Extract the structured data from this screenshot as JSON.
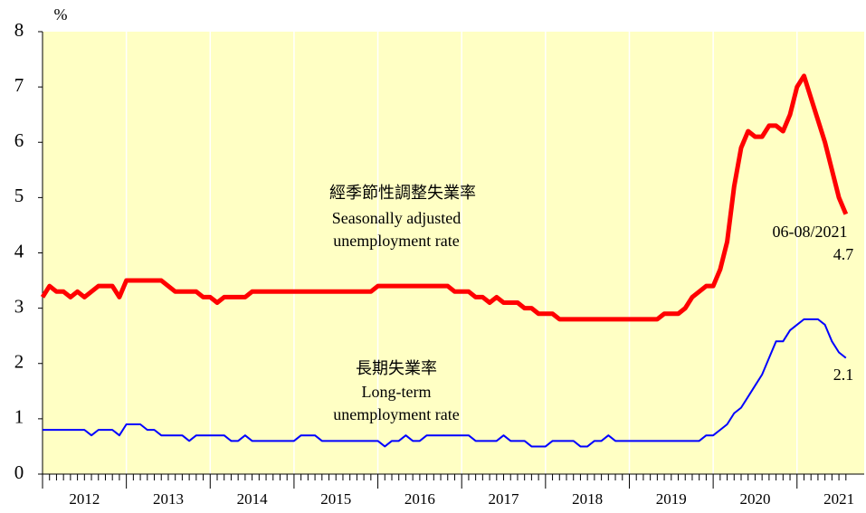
{
  "chart_data": {
    "type": "line",
    "y_unit": "%",
    "categories": [
      "2012",
      null,
      null,
      null,
      null,
      null,
      null,
      null,
      null,
      null,
      null,
      null,
      "2013",
      null,
      null,
      null,
      null,
      null,
      null,
      null,
      null,
      null,
      null,
      null,
      "2014",
      null,
      null,
      null,
      null,
      null,
      null,
      null,
      null,
      null,
      null,
      null,
      "2015",
      null,
      null,
      null,
      null,
      null,
      null,
      null,
      null,
      null,
      null,
      null,
      "2016",
      null,
      null,
      null,
      null,
      null,
      null,
      null,
      null,
      null,
      null,
      null,
      "2017",
      null,
      null,
      null,
      null,
      null,
      null,
      null,
      null,
      null,
      null,
      null,
      "2018",
      null,
      null,
      null,
      null,
      null,
      null,
      null,
      null,
      null,
      null,
      null,
      "2019",
      null,
      null,
      null,
      null,
      null,
      null,
      null,
      null,
      null,
      null,
      null,
      "2020",
      null,
      null,
      null,
      null,
      null,
      null,
      null,
      null,
      null,
      null,
      null,
      "2021",
      null,
      null,
      null,
      null,
      null,
      null,
      null
    ],
    "series": [
      {
        "name": "Seasonally adjusted unemployment rate",
        "color": "#ff0000",
        "values": [
          3.2,
          3.4,
          3.3,
          3.3,
          3.2,
          3.3,
          3.2,
          3.3,
          3.4,
          3.4,
          3.4,
          3.2,
          3.5,
          3.5,
          3.5,
          3.5,
          3.5,
          3.5,
          3.4,
          3.3,
          3.3,
          3.3,
          3.3,
          3.2,
          3.2,
          3.1,
          3.2,
          3.2,
          3.2,
          3.2,
          3.3,
          3.3,
          3.3,
          3.3,
          3.3,
          3.3,
          3.3,
          3.3,
          3.3,
          3.3,
          3.3,
          3.3,
          3.3,
          3.3,
          3.3,
          3.3,
          3.3,
          3.3,
          3.4,
          3.4,
          3.4,
          3.4,
          3.4,
          3.4,
          3.4,
          3.4,
          3.4,
          3.4,
          3.4,
          3.3,
          3.3,
          3.3,
          3.2,
          3.2,
          3.1,
          3.2,
          3.1,
          3.1,
          3.1,
          3.0,
          3.0,
          2.9,
          2.9,
          2.9,
          2.8,
          2.8,
          2.8,
          2.8,
          2.8,
          2.8,
          2.8,
          2.8,
          2.8,
          2.8,
          2.8,
          2.8,
          2.8,
          2.8,
          2.8,
          2.9,
          2.9,
          2.9,
          3.0,
          3.2,
          3.3,
          3.4,
          3.4,
          3.7,
          4.2,
          5.2,
          5.9,
          6.2,
          6.1,
          6.1,
          6.3,
          6.3,
          6.2,
          6.5,
          7.0,
          7.2,
          6.8,
          6.4,
          6.0,
          5.5,
          5.0,
          4.7
        ]
      },
      {
        "name": "Long-term unemployment rate",
        "color": "#0000ff",
        "values": [
          0.8,
          0.8,
          0.8,
          0.8,
          0.8,
          0.8,
          0.8,
          0.7,
          0.8,
          0.8,
          0.8,
          0.7,
          0.9,
          0.9,
          0.9,
          0.8,
          0.8,
          0.7,
          0.7,
          0.7,
          0.7,
          0.6,
          0.7,
          0.7,
          0.7,
          0.7,
          0.7,
          0.6,
          0.6,
          0.7,
          0.6,
          0.6,
          0.6,
          0.6,
          0.6,
          0.6,
          0.6,
          0.7,
          0.7,
          0.7,
          0.6,
          0.6,
          0.6,
          0.6,
          0.6,
          0.6,
          0.6,
          0.6,
          0.6,
          0.5,
          0.6,
          0.6,
          0.7,
          0.6,
          0.6,
          0.7,
          0.7,
          0.7,
          0.7,
          0.7,
          0.7,
          0.7,
          0.6,
          0.6,
          0.6,
          0.6,
          0.7,
          0.6,
          0.6,
          0.6,
          0.5,
          0.5,
          0.5,
          0.6,
          0.6,
          0.6,
          0.6,
          0.5,
          0.5,
          0.6,
          0.6,
          0.7,
          0.6,
          0.6,
          0.6,
          0.6,
          0.6,
          0.6,
          0.6,
          0.6,
          0.6,
          0.6,
          0.6,
          0.6,
          0.6,
          0.7,
          0.7,
          0.8,
          0.9,
          1.1,
          1.2,
          1.4,
          1.6,
          1.8,
          2.1,
          2.4,
          2.4,
          2.6,
          2.7,
          2.8,
          2.8,
          2.8,
          2.7,
          2.4,
          2.2,
          2.1
        ]
      }
    ],
    "ylim": [
      0,
      8
    ],
    "yticks": [
      0,
      1,
      2,
      3,
      4,
      5,
      6,
      7,
      8
    ],
    "background": "#ffffc4",
    "annotations": [
      {
        "text": "經季節性調整失業率"
      },
      {
        "text": "Seasonally adjusted"
      },
      {
        "text": "unemployment rate"
      },
      {
        "text": "長期失業率"
      },
      {
        "text": "Long-term"
      },
      {
        "text": "unemployment rate"
      },
      {
        "text": "06-08/2021"
      }
    ]
  }
}
